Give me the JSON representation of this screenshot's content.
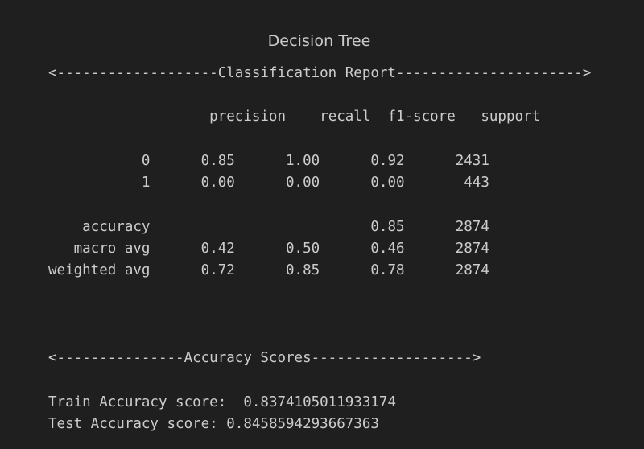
{
  "title": "Decision Tree",
  "report_header": "<-------------------Classification Report---------------------->",
  "columns": {
    "precision": "precision",
    "recall": "recall",
    "f1": "f1-score",
    "support": "support"
  },
  "rows": [
    {
      "label": "0",
      "precision": "0.85",
      "recall": "1.00",
      "f1": "0.92",
      "support": "2431"
    },
    {
      "label": "1",
      "precision": "0.00",
      "recall": "0.00",
      "f1": "0.00",
      "support": "443"
    }
  ],
  "averages": [
    {
      "label": "accuracy",
      "precision": "",
      "recall": "",
      "f1": "0.85",
      "support": "2874"
    },
    {
      "label": "macro avg",
      "precision": "0.42",
      "recall": "0.50",
      "f1": "0.46",
      "support": "2874"
    },
    {
      "label": "weighted avg",
      "precision": "0.72",
      "recall": "0.85",
      "f1": "0.78",
      "support": "2874"
    }
  ],
  "scores_header": "<---------------Accuracy Scores------------------->",
  "scores": {
    "train_label": "Train Accuracy score:",
    "train_value": "0.8374105011933174",
    "test_label": "Test Accuracy score:",
    "test_value": "0.8458594293667363"
  }
}
